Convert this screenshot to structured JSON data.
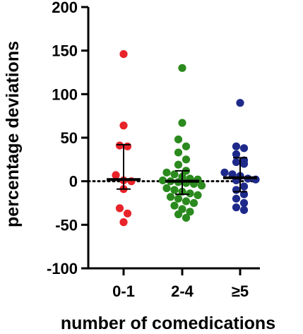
{
  "chart_data": {
    "type": "scatter",
    "xlabel": "number of comedications",
    "ylabel": "percentage deviations",
    "categories": [
      "0-1",
      "2-4",
      "≥5"
    ],
    "ylim": [
      -100,
      200
    ],
    "yticks": [
      -100,
      -50,
      0,
      50,
      100,
      150,
      200
    ],
    "reference_line": 0,
    "grid": false,
    "series": [
      {
        "category": "0-1",
        "color": "#e8232a",
        "values": [
          146,
          64,
          41,
          40,
          7,
          1,
          0,
          -9,
          -31,
          -37,
          -47
        ],
        "median": 2,
        "q1": -9,
        "q3": 42
      },
      {
        "category": "2-4",
        "color": "#2b8a1e",
        "values": [
          130,
          67,
          48,
          40,
          33,
          25,
          19,
          12,
          10,
          8,
          5,
          3,
          2,
          1,
          0,
          -1,
          -2,
          -3,
          -5,
          -8,
          -10,
          -12,
          -14,
          -16,
          -18,
          -20,
          -23,
          -25,
          -28,
          -32,
          -35,
          -38,
          -42
        ],
        "median": 0,
        "q1": -15,
        "q3": 12
      },
      {
        "category": "≥5",
        "color": "#1e2a8a",
        "values": [
          90,
          40,
          38,
          31,
          24,
          22,
          20,
          10,
          8,
          6,
          3,
          2,
          1,
          -6,
          -10,
          -15,
          -20,
          -25,
          -30,
          -33
        ],
        "median": 4,
        "q1": -12,
        "q3": 27
      }
    ]
  }
}
